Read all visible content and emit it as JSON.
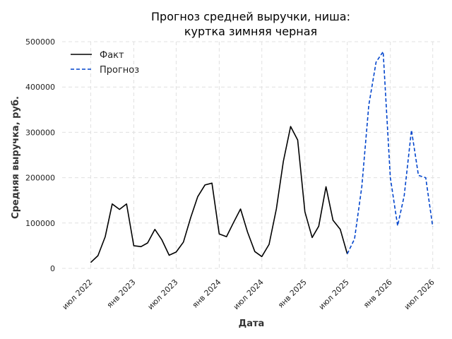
{
  "chart_data": {
    "type": "line",
    "title": "Прогноз средней выручки, ниша:\nкуртка зимняя черная",
    "xlabel": "Дата",
    "ylabel": "Средняя выручка, руб.",
    "ylim": [
      0,
      500000
    ],
    "yticks": [
      0,
      100000,
      200000,
      300000,
      400000,
      500000
    ],
    "xlim": [
      "2022-03-01",
      "2026-08-01"
    ],
    "xticks": [
      {
        "date": "2022-07-01",
        "label": "июл 2022"
      },
      {
        "date": "2023-01-01",
        "label": "янв 2023"
      },
      {
        "date": "2023-07-01",
        "label": "июл 2023"
      },
      {
        "date": "2024-01-01",
        "label": "янв 2024"
      },
      {
        "date": "2024-07-01",
        "label": "июл 2024"
      },
      {
        "date": "2025-01-01",
        "label": "янв 2025"
      },
      {
        "date": "2025-07-01",
        "label": "июл 2025"
      },
      {
        "date": "2026-01-01",
        "label": "янв 2026"
      },
      {
        "date": "2026-07-01",
        "label": "июл 2026"
      }
    ],
    "grid": true,
    "legend_position": "top-left",
    "series": [
      {
        "name": "Факт",
        "color": "#000000",
        "style": "solid",
        "x": [
          "2022-07-01",
          "2022-08-01",
          "2022-09-01",
          "2022-10-01",
          "2022-11-01",
          "2022-12-01",
          "2023-01-01",
          "2023-02-01",
          "2023-03-01",
          "2023-04-01",
          "2023-05-01",
          "2023-06-01",
          "2023-07-01",
          "2023-08-01",
          "2023-09-01",
          "2023-10-01",
          "2023-11-01",
          "2023-12-01",
          "2024-01-01",
          "2024-02-01",
          "2024-03-01",
          "2024-04-01",
          "2024-05-01",
          "2024-06-01",
          "2024-07-01",
          "2024-08-01",
          "2024-09-01",
          "2024-10-01",
          "2024-11-01",
          "2024-12-01",
          "2025-01-01",
          "2025-02-01",
          "2025-03-01",
          "2025-04-01",
          "2025-05-01",
          "2025-06-01",
          "2025-07-01"
        ],
        "values": [
          13000,
          28000,
          70000,
          142000,
          130000,
          142000,
          50000,
          48000,
          56000,
          86000,
          63000,
          29000,
          36000,
          58000,
          112000,
          158000,
          184000,
          188000,
          76000,
          70000,
          100000,
          131000,
          80000,
          37000,
          26000,
          53000,
          131000,
          236000,
          313000,
          283000,
          125000,
          68000,
          93000,
          180000,
          106000,
          86000,
          32000
        ]
      },
      {
        "name": "Прогноз",
        "color": "#0044cc",
        "style": "dashed",
        "x": [
          "2025-07-01",
          "2025-08-01",
          "2025-09-01",
          "2025-10-01",
          "2025-11-01",
          "2025-12-01",
          "2026-01-01",
          "2026-02-01",
          "2026-03-01",
          "2026-04-01",
          "2026-05-01",
          "2026-06-01",
          "2026-07-01"
        ],
        "values": [
          32000,
          65000,
          180000,
          360000,
          455000,
          478000,
          200000,
          94000,
          160000,
          305000,
          205000,
          200000,
          92000
        ]
      }
    ]
  }
}
